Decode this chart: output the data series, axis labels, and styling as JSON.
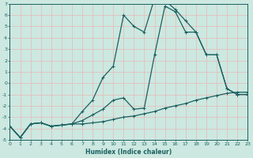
{
  "xlabel": "Humidex (Indice chaleur)",
  "xlim": [
    0,
    23
  ],
  "ylim": [
    -5,
    7
  ],
  "xticks": [
    0,
    1,
    2,
    3,
    4,
    5,
    6,
    7,
    8,
    9,
    10,
    11,
    12,
    13,
    14,
    15,
    16,
    17,
    18,
    19,
    20,
    21,
    22,
    23
  ],
  "yticks": [
    -5,
    -4,
    -3,
    -2,
    -1,
    0,
    1,
    2,
    3,
    4,
    5,
    6,
    7
  ],
  "bg_color": "#cce8e0",
  "grid_color": "#e8b8b8",
  "line_color": "#1a6060",
  "line1_x": [
    0,
    1,
    2,
    3,
    4,
    5,
    6,
    7,
    8,
    9,
    10,
    11,
    12,
    13,
    14,
    15,
    16,
    17,
    18,
    19,
    20,
    21,
    22,
    23
  ],
  "line1_y": [
    -3.8,
    -4.8,
    -3.6,
    -3.5,
    -3.8,
    -3.7,
    -3.6,
    -3.6,
    -3.5,
    -3.4,
    -3.2,
    -3.0,
    -2.9,
    -2.7,
    -2.5,
    -2.2,
    -2.0,
    -1.8,
    -1.5,
    -1.3,
    -1.1,
    -0.9,
    -0.8,
    -0.8
  ],
  "line2_x": [
    0,
    1,
    2,
    3,
    4,
    5,
    6,
    7,
    8,
    9,
    10,
    11,
    12,
    13,
    14,
    15,
    16,
    17,
    18,
    19,
    20,
    21,
    22,
    23
  ],
  "line2_y": [
    -3.8,
    -4.8,
    -3.6,
    -3.5,
    -3.8,
    -3.7,
    -3.6,
    -3.3,
    -2.8,
    -2.3,
    -1.5,
    -1.3,
    -2.3,
    -2.2,
    2.5,
    6.8,
    6.3,
    4.5,
    4.5,
    2.5,
    2.5,
    -0.5,
    -1.0,
    -1.0
  ],
  "line3_x": [
    0,
    1,
    2,
    3,
    4,
    5,
    6,
    7,
    8,
    9,
    10,
    11,
    12,
    13,
    14,
    15,
    16,
    17,
    18,
    19,
    20,
    21,
    22,
    23
  ],
  "line3_y": [
    -3.8,
    -4.8,
    -3.6,
    -3.5,
    -3.8,
    -3.7,
    -3.6,
    -2.5,
    -1.5,
    0.5,
    1.5,
    6.0,
    5.0,
    4.5,
    7.5,
    7.3,
    6.5,
    5.5,
    4.5,
    2.5,
    2.5,
    -0.5,
    -1.0,
    -1.0
  ]
}
